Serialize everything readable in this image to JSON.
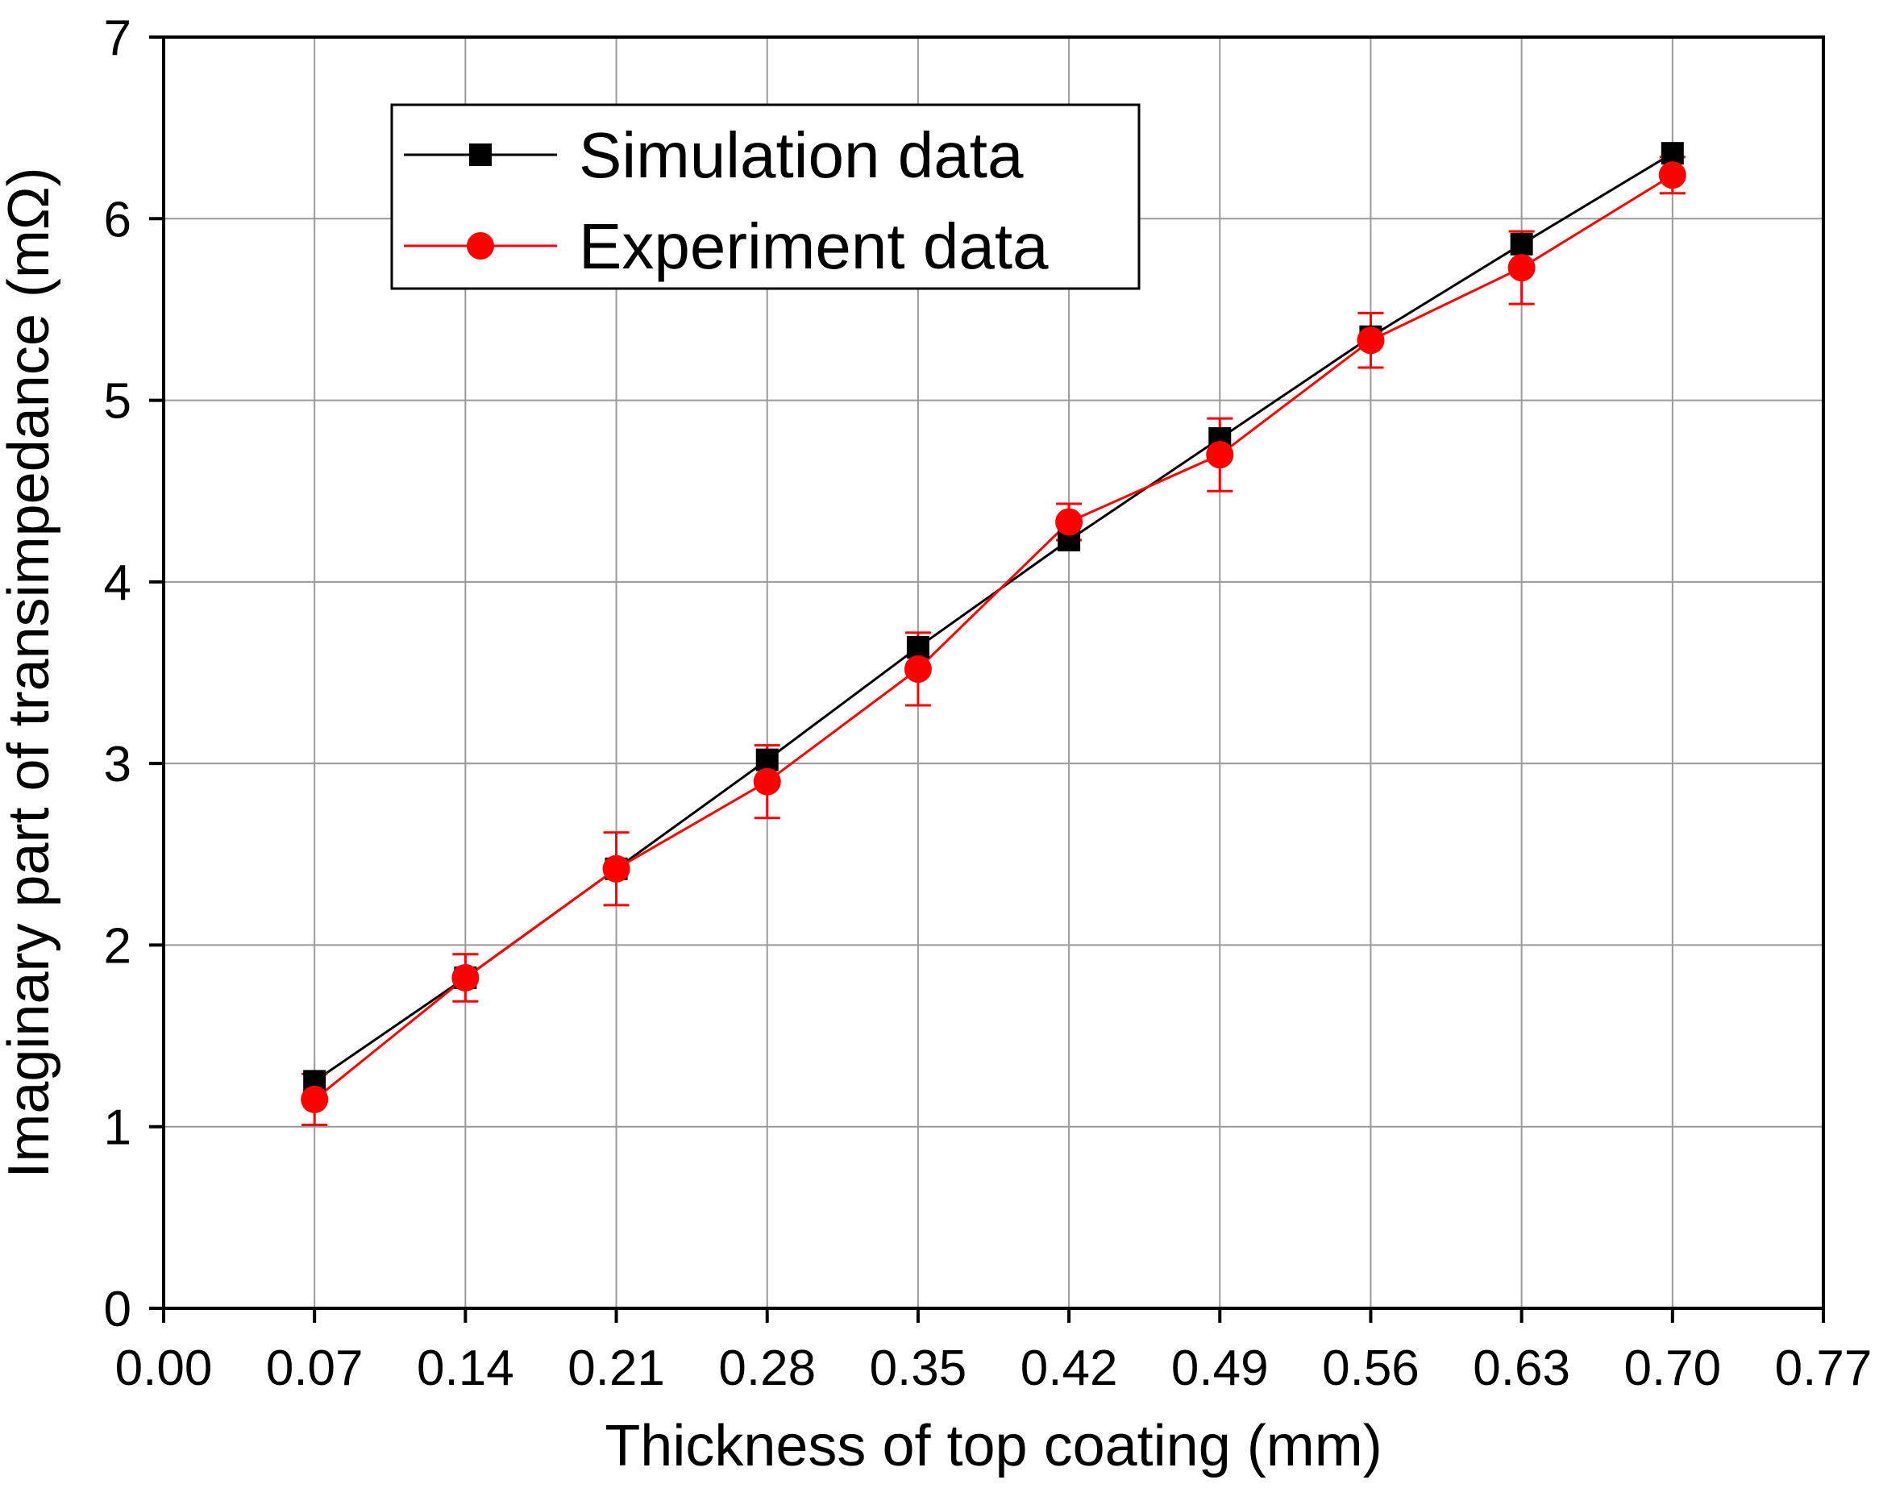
{
  "chart_data": {
    "type": "line",
    "title": "",
    "xlabel": "Thickness of top coating (mm)",
    "ylabel": "Imaginary part of transimpedance (mΩ)",
    "xlim": [
      0.0,
      0.77
    ],
    "ylim": [
      0,
      7
    ],
    "x_ticks": [
      "0.00",
      "0.07",
      "0.14",
      "0.21",
      "0.28",
      "0.35",
      "0.42",
      "0.49",
      "0.56",
      "0.63",
      "0.70",
      "0.77"
    ],
    "y_ticks": [
      "0",
      "1",
      "2",
      "3",
      "4",
      "5",
      "6",
      "7"
    ],
    "grid": true,
    "legend_position": "top-left",
    "x": [
      0.07,
      0.14,
      0.21,
      0.28,
      0.35,
      0.42,
      0.49,
      0.56,
      0.63,
      0.7
    ],
    "series": [
      {
        "name": "Simulation data",
        "marker": "square",
        "color": "#000000",
        "values": [
          1.25,
          1.82,
          2.42,
          3.02,
          3.64,
          4.23,
          4.79,
          5.35,
          5.86,
          6.36
        ]
      },
      {
        "name": "Experiment data",
        "marker": "circle",
        "color": "#ff0000",
        "values": [
          1.15,
          1.82,
          2.42,
          2.9,
          3.52,
          4.33,
          4.7,
          5.33,
          5.73,
          6.24
        ],
        "error": [
          0.14,
          0.13,
          0.2,
          0.2,
          0.2,
          0.1,
          0.2,
          0.15,
          0.2,
          0.1
        ]
      }
    ]
  }
}
